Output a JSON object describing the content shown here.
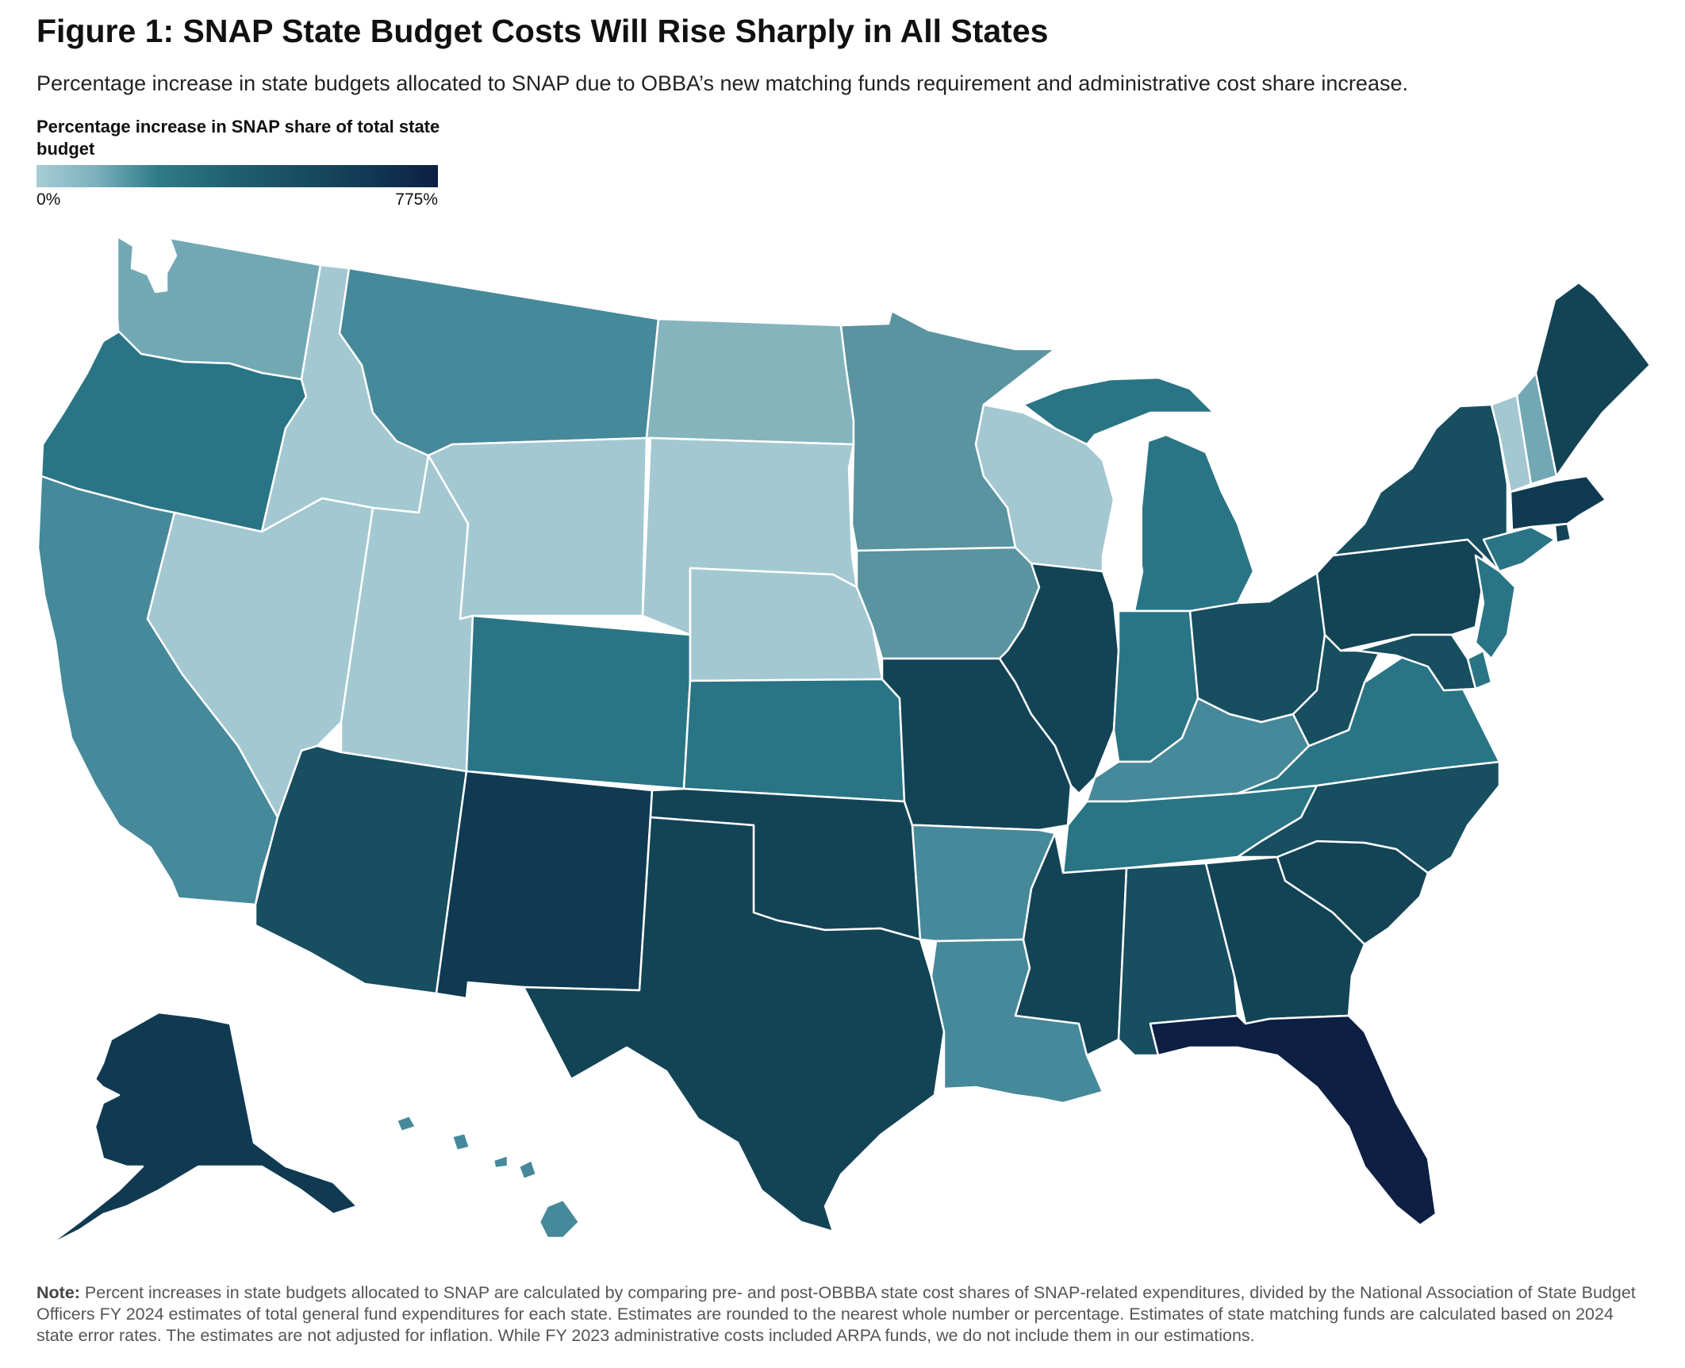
{
  "title": "Figure 1: SNAP State Budget Costs Will Rise Sharply in All States",
  "subtitle": "Percentage increase in state budgets allocated to SNAP due to OBBA’s new matching funds requirement and administrative cost share increase.",
  "legend": {
    "title": "Percentage increase in SNAP share of total state budget",
    "min_label": "0%",
    "max_label": "775%",
    "min_value": 0,
    "max_value": 775
  },
  "colors": {
    "lightest": "#a3c8d1",
    "light": "#86b4bd",
    "light_mid": "#72a8b4",
    "mid_light": "#5994a0",
    "mid": "#46899a",
    "teal": "#2a7585",
    "teal_dark": "#1f6172",
    "dark": "#174e60",
    "darker": "#134456",
    "darkest_teal": "#0f3a52",
    "navy": "#0d1f42"
  },
  "states": {
    "WA": "light_mid",
    "OR": "teal",
    "CA": "mid",
    "ID": "lightest",
    "NV": "lightest",
    "MT": "mid",
    "WY": "lightest",
    "UT": "lightest",
    "AZ": "dark",
    "CO": "teal",
    "NM": "darkest_teal",
    "ND": "light",
    "SD": "lightest",
    "NE": "lightest",
    "KS": "teal",
    "OK": "darker",
    "TX": "darker",
    "MN": "mid_light",
    "IA": "mid_light",
    "MO": "darker",
    "AR": "mid",
    "LA": "mid",
    "WI": "lightest",
    "IL": "darker",
    "MI": "teal",
    "IN": "teal",
    "OH": "dark",
    "KY": "mid",
    "TN": "teal",
    "MS": "darker",
    "AL": "dark",
    "GA": "darker",
    "FL": "navy",
    "SC": "darker",
    "NC": "dark",
    "VA": "teal",
    "WV": "dark",
    "PA": "darker",
    "NY": "dark",
    "VT": "lightest",
    "NH": "light_mid",
    "ME": "darker",
    "MA": "darkest_teal",
    "CT": "teal",
    "RI": "darker",
    "NJ": "teal",
    "DE": "teal",
    "MD": "dark",
    "AK": "darkest_teal",
    "HI": "mid"
  },
  "note": {
    "label": "Note:",
    "text": "Percent increases in state budgets allocated to SNAP are calculated by comparing pre- and post-OBBBA state cost shares of SNAP-related expenditures, divided by the National Association of State Budget Officers FY 2024 estimates of total general fund expenditures for each state. Estimates are rounded to the nearest whole number or percentage. Estimates of state matching funds are calculated based on 2024 state error rates. The estimates are not adjusted for inflation. While FY 2023 administrative costs included ARPA funds, we do not include them in our estimations."
  }
}
